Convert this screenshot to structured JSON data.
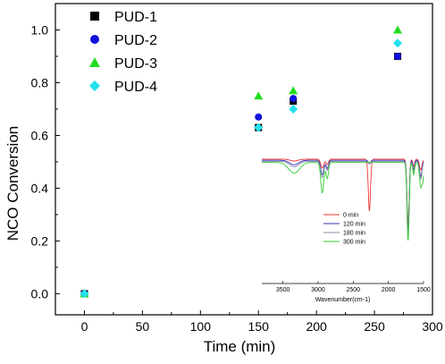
{
  "chart_data": {
    "type": "scatter",
    "xlabel": "Time (min)",
    "ylabel": "NCO Conversion",
    "xlim": [
      -25,
      300
    ],
    "ylim": [
      -0.08,
      1.1
    ],
    "xticks": [
      0,
      50,
      100,
      150,
      200,
      250,
      300
    ],
    "yticks": [
      0.0,
      0.2,
      0.4,
      0.6,
      0.8,
      1.0
    ],
    "xtick_labels": [
      "0",
      "50",
      "100",
      "150",
      "200",
      "250",
      "300"
    ],
    "ytick_labels": [
      "0.0",
      "0.2",
      "0.4",
      "0.6",
      "0.8",
      "1.0"
    ],
    "legend_position": "top-left",
    "series": [
      {
        "name": "PUD-1",
        "marker": "square",
        "color": "#000000",
        "points": [
          [
            0,
            0.0
          ],
          [
            150,
            0.63
          ],
          [
            180,
            0.73
          ],
          [
            270,
            0.9
          ]
        ]
      },
      {
        "name": "PUD-2",
        "marker": "circle",
        "color": "#1010dd",
        "points": [
          [
            0,
            0.0
          ],
          [
            150,
            0.67
          ],
          [
            180,
            0.74
          ],
          [
            270,
            0.9
          ]
        ]
      },
      {
        "name": "PUD-3",
        "marker": "triangle",
        "color": "#22dd22",
        "points": [
          [
            0,
            0.0
          ],
          [
            150,
            0.75
          ],
          [
            180,
            0.77
          ],
          [
            270,
            1.0
          ]
        ]
      },
      {
        "name": "PUD-4",
        "marker": "diamond",
        "color": "#22e0ee",
        "points": [
          [
            0,
            0.0
          ],
          [
            150,
            0.63
          ],
          [
            180,
            0.7
          ],
          [
            270,
            0.95
          ]
        ]
      }
    ],
    "inset": {
      "type": "line",
      "xlabel": "Wavenumber(cm-1)",
      "xticks": [
        "3500",
        "3000",
        "2500",
        "2000",
        "1500"
      ],
      "xlim": [
        3800,
        1500
      ],
      "legend_position": "bottom-right",
      "series": [
        {
          "name": "0 min",
          "color": "#ee3333"
        },
        {
          "name": "120 min",
          "color": "#3333bb"
        },
        {
          "name": "180 min",
          "color": "#8888aa"
        },
        {
          "name": "300 min",
          "color": "#33cc33"
        }
      ]
    }
  }
}
